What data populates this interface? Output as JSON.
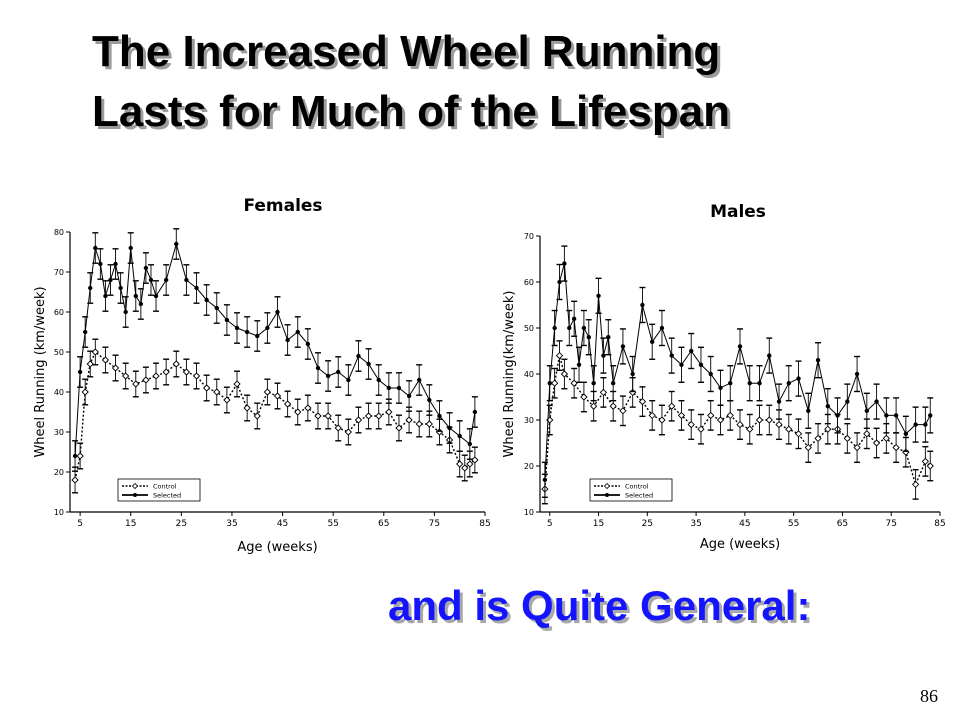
{
  "slide": {
    "title_line1": "The Increased Wheel Running",
    "title_line2": "Lasts for Much of the Lifespan",
    "subtitle": "and is Quite General:",
    "page_number": "86",
    "subtitle_color": "#1414ff"
  },
  "chart_data": [
    {
      "type": "line",
      "title": "Females",
      "xlabel": "Age (weeks)",
      "ylabel": "Wheel Running (km/week)",
      "xlim": [
        3,
        85
      ],
      "ylim": [
        10,
        80
      ],
      "xticks": [
        5,
        15,
        25,
        35,
        45,
        55,
        65,
        75,
        85
      ],
      "yticks": [
        10,
        20,
        30,
        40,
        50,
        60,
        70,
        80
      ],
      "error_bars": true,
      "legend_position": "bottom-left",
      "series": [
        {
          "name": "Control",
          "marker": "open-diamond",
          "style": "dotted",
          "x": [
            4,
            5,
            6,
            7,
            8,
            10,
            12,
            14,
            16,
            18,
            20,
            22,
            24,
            26,
            28,
            30,
            32,
            34,
            36,
            38,
            40,
            42,
            44,
            46,
            48,
            50,
            52,
            54,
            56,
            58,
            60,
            62,
            64,
            66,
            68,
            70,
            72,
            74,
            76,
            78,
            80,
            81,
            82,
            83
          ],
          "values": [
            18,
            24,
            40,
            47,
            50,
            48,
            46,
            44,
            42,
            43,
            44,
            45,
            47,
            45,
            44,
            41,
            40,
            38,
            42,
            36,
            34,
            40,
            39,
            37,
            35,
            36,
            34,
            34,
            31,
            30,
            33,
            34,
            34,
            35,
            31,
            33,
            32,
            32,
            30,
            28,
            22,
            21,
            22,
            23
          ]
        },
        {
          "name": "Selected",
          "marker": "filled-circle",
          "style": "solid",
          "x": [
            4,
            5,
            6,
            7,
            8,
            9,
            10,
            11,
            12,
            13,
            14,
            15,
            16,
            17,
            18,
            19,
            20,
            22,
            24,
            26,
            28,
            30,
            32,
            34,
            36,
            38,
            40,
            42,
            44,
            46,
            48,
            50,
            52,
            54,
            56,
            58,
            60,
            62,
            64,
            66,
            68,
            70,
            72,
            74,
            76,
            78,
            80,
            82,
            83
          ],
          "values": [
            24,
            45,
            55,
            66,
            76,
            72,
            64,
            68,
            72,
            66,
            60,
            76,
            64,
            62,
            71,
            68,
            64,
            68,
            77,
            68,
            66,
            63,
            61,
            58,
            56,
            55,
            54,
            56,
            60,
            53,
            55,
            52,
            46,
            44,
            45,
            43,
            49,
            47,
            43,
            41,
            41,
            39,
            43,
            38,
            34,
            31,
            29,
            27,
            35
          ]
        }
      ]
    },
    {
      "type": "line",
      "title": "Males",
      "xlabel": "Age (weeks)",
      "ylabel": "Wheel Running(km/week)",
      "xlim": [
        3,
        85
      ],
      "ylim": [
        10,
        70
      ],
      "xticks": [
        5,
        15,
        25,
        35,
        45,
        55,
        65,
        75,
        85
      ],
      "yticks": [
        10,
        20,
        30,
        40,
        50,
        60,
        70
      ],
      "error_bars": true,
      "legend_position": "bottom-left",
      "series": [
        {
          "name": "Control",
          "marker": "open-diamond",
          "style": "dotted",
          "x": [
            4,
            5,
            6,
            7,
            8,
            10,
            12,
            14,
            16,
            18,
            20,
            22,
            24,
            26,
            28,
            30,
            32,
            34,
            36,
            38,
            40,
            42,
            44,
            46,
            48,
            50,
            52,
            54,
            56,
            58,
            60,
            62,
            64,
            66,
            68,
            70,
            72,
            74,
            76,
            78,
            80,
            82,
            83
          ],
          "values": [
            15,
            30,
            38,
            44,
            40,
            38,
            35,
            33,
            36,
            33,
            32,
            36,
            34,
            31,
            30,
            33,
            31,
            29,
            28,
            31,
            30,
            31,
            29,
            28,
            30,
            30,
            29,
            28,
            27,
            24,
            26,
            28,
            28,
            26,
            24,
            27,
            25,
            26,
            24,
            23,
            16,
            21,
            20
          ]
        },
        {
          "name": "Selected",
          "marker": "filled-circle",
          "style": "solid",
          "x": [
            4,
            5,
            6,
            7,
            8,
            9,
            10,
            11,
            12,
            13,
            14,
            15,
            16,
            17,
            18,
            20,
            22,
            24,
            26,
            28,
            30,
            32,
            34,
            36,
            38,
            40,
            42,
            44,
            46,
            48,
            50,
            52,
            54,
            56,
            58,
            60,
            62,
            64,
            66,
            68,
            70,
            72,
            74,
            76,
            78,
            80,
            82,
            83
          ],
          "values": [
            17,
            38,
            50,
            60,
            64,
            50,
            52,
            42,
            50,
            48,
            38,
            57,
            44,
            48,
            38,
            46,
            40,
            55,
            47,
            50,
            44,
            42,
            45,
            42,
            40,
            37,
            38,
            46,
            38,
            38,
            44,
            34,
            38,
            39,
            32,
            43,
            33,
            31,
            34,
            40,
            32,
            34,
            31,
            31,
            27,
            29,
            29,
            31
          ]
        }
      ]
    }
  ]
}
